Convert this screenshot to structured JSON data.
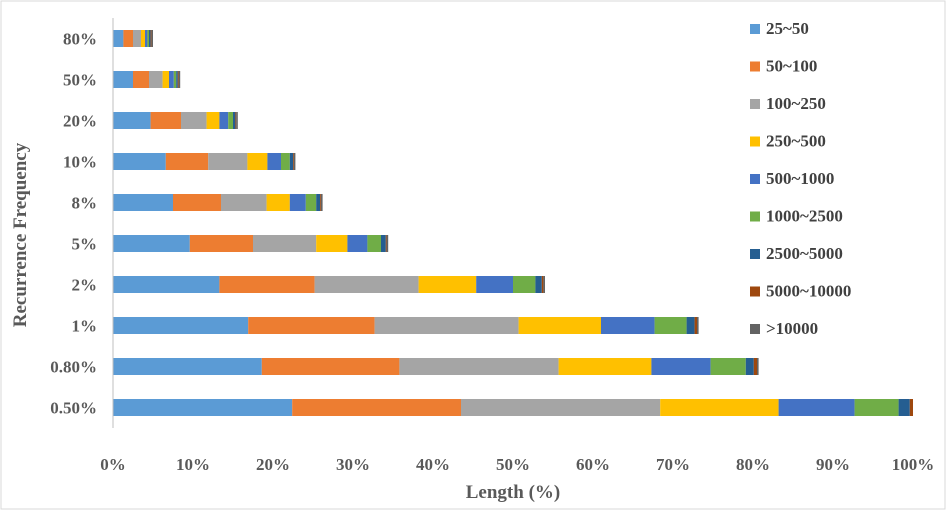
{
  "chart_data": {
    "type": "bar",
    "orientation": "horizontal",
    "stacked": true,
    "title": "",
    "xlabel": "Length (%)",
    "ylabel": "Recurrence Frequency",
    "xlim": [
      0,
      100
    ],
    "x_ticks": [
      "0%",
      "10%",
      "20%",
      "30%",
      "40%",
      "50%",
      "60%",
      "70%",
      "80%",
      "90%",
      "100%"
    ],
    "grid": false,
    "legend_position": "right",
    "categories": [
      "0.50%",
      "0.80%",
      "1%",
      "2%",
      "5%",
      "8%",
      "10%",
      "20%",
      "50%",
      "80%"
    ],
    "series": [
      {
        "name": "25~50",
        "color": "#5B9BD5",
        "values": [
          22.4,
          18.6,
          16.9,
          13.3,
          9.6,
          7.5,
          6.6,
          4.7,
          2.5,
          1.3
        ]
      },
      {
        "name": "50~100",
        "color": "#ED7D31",
        "values": [
          21.1,
          17.2,
          15.8,
          11.9,
          7.9,
          6.0,
          5.3,
          3.8,
          2.0,
          1.2
        ]
      },
      {
        "name": "100~250",
        "color": "#A5A5A5",
        "values": [
          24.9,
          19.9,
          18.0,
          13.0,
          7.9,
          5.7,
          4.9,
          3.2,
          1.7,
          1.0
        ]
      },
      {
        "name": "250~500",
        "color": "#FFC000",
        "values": [
          14.8,
          11.6,
          10.3,
          7.2,
          3.9,
          2.9,
          2.5,
          1.6,
          0.8,
          0.5
        ]
      },
      {
        "name": "500~1000",
        "color": "#4472C4",
        "values": [
          9.5,
          7.4,
          6.7,
          4.6,
          2.5,
          2.0,
          1.7,
          1.1,
          0.6,
          0.3
        ]
      },
      {
        "name": "1000~2500",
        "color": "#70AD47",
        "values": [
          5.5,
          4.4,
          4.0,
          2.8,
          1.7,
          1.3,
          1.1,
          0.6,
          0.3,
          0.2
        ]
      },
      {
        "name": "2500~5000",
        "color": "#255E91",
        "values": [
          1.4,
          1.0,
          1.0,
          0.8,
          0.6,
          0.5,
          0.4,
          0.3,
          0.2,
          0.2
        ]
      },
      {
        "name": "5000~10000",
        "color": "#9E480E",
        "values": [
          0.4,
          0.4,
          0.3,
          0.2,
          0.1,
          0.1,
          0.1,
          0.1,
          0.1,
          0.1
        ]
      },
      {
        "name": ">10000",
        "color": "#636363",
        "values": [
          0.0,
          0.2,
          0.2,
          0.2,
          0.2,
          0.2,
          0.2,
          0.2,
          0.2,
          0.2
        ]
      }
    ]
  }
}
